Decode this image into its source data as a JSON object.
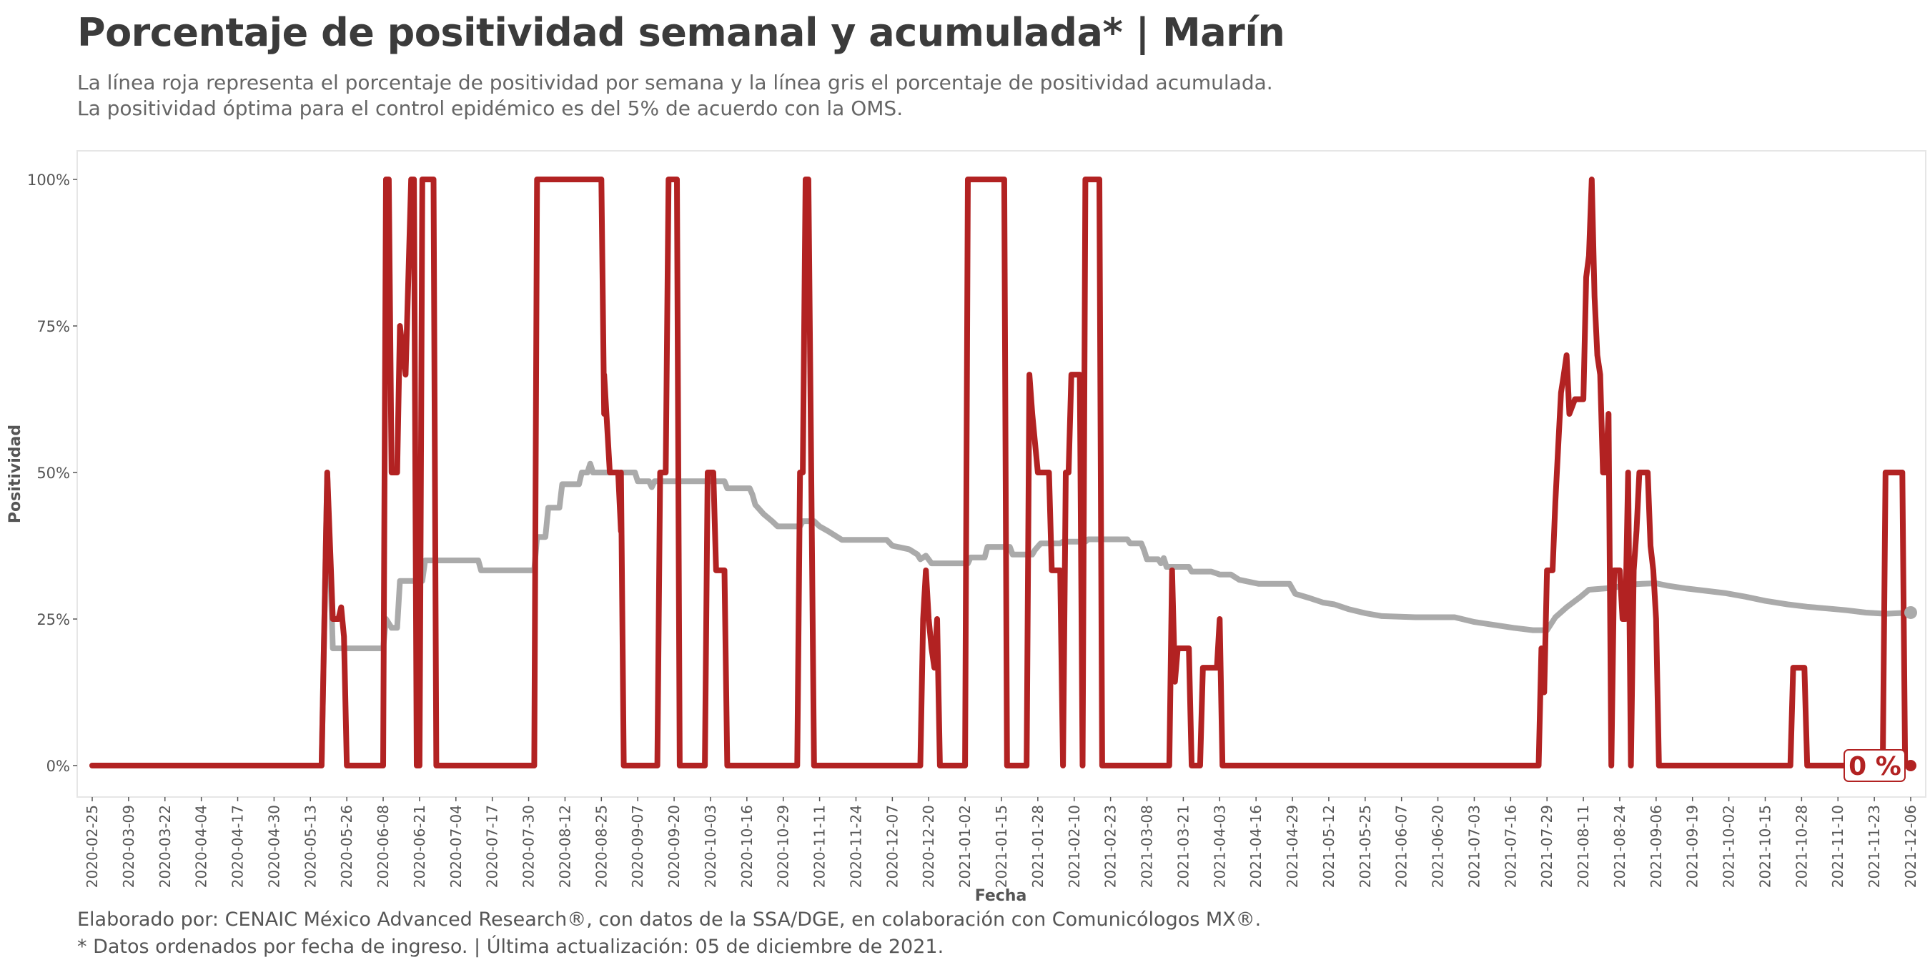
{
  "header": {
    "title": "Porcentaje de positividad semanal y acumulada* | Marín",
    "subtitle_line1": "La línea roja representa el porcentaje de positividad por semana y la línea gris el porcentaje de positividad acumulada.",
    "subtitle_line2": "La positividad óptima para el control epidémico es del 5% de acuerdo con la OMS."
  },
  "footer": {
    "caption_line1": "Elaborado por: CENAIC México Advanced Research®, con datos de la SSA/DGE, en colaboración con Comunicólogos MX®.",
    "caption_line2": "* Datos ordenados por fecha de ingreso. | Última actualización: 05 de diciembre de 2021."
  },
  "colors": {
    "weekly": "#b22222",
    "cumulative": "#aaaaaa",
    "panel_border": "#e6e6e6"
  },
  "chart_data": {
    "type": "line",
    "title": "Porcentaje de positividad semanal y acumulada* | Marín",
    "xlabel": "Fecha",
    "ylabel": "Positividad",
    "ylim": [
      0,
      100
    ],
    "y_ticks": [
      0,
      25,
      50,
      75,
      100
    ],
    "y_tick_labels": [
      "0%",
      "25%",
      "50%",
      "75%",
      "100%"
    ],
    "x_range": [
      "2020-02-25",
      "2021-12-06"
    ],
    "x_ticks": [
      "2020-02-25",
      "2020-03-09",
      "2020-03-22",
      "2020-04-04",
      "2020-04-17",
      "2020-04-30",
      "2020-05-13",
      "2020-05-26",
      "2020-06-08",
      "2020-06-21",
      "2020-07-04",
      "2020-07-17",
      "2020-07-30",
      "2020-08-12",
      "2020-08-25",
      "2020-09-07",
      "2020-09-20",
      "2020-10-03",
      "2020-10-16",
      "2020-10-29",
      "2020-11-11",
      "2020-11-24",
      "2020-12-07",
      "2020-12-20",
      "2021-01-02",
      "2021-01-15",
      "2021-01-28",
      "2021-02-10",
      "2021-02-23",
      "2021-03-08",
      "2021-03-21",
      "2021-04-03",
      "2021-04-16",
      "2021-04-29",
      "2021-05-12",
      "2021-05-25",
      "2021-06-07",
      "2021-06-20",
      "2021-07-03",
      "2021-07-16",
      "2021-07-29",
      "2021-08-11",
      "2021-08-24",
      "2021-09-06",
      "2021-09-19",
      "2021-10-02",
      "2021-10-15",
      "2021-10-28",
      "2021-11-10",
      "2021-11-23",
      "2021-12-06"
    ],
    "end_label": "0 %",
    "grid": false,
    "series": [
      {
        "name": "",
        "points": [
          [
            "2020-02-25",
            0
          ],
          [
            "2020-05-17",
            0
          ],
          [
            "2020-05-19",
            50
          ],
          [
            "2020-05-21",
            25
          ],
          [
            "2020-05-23",
            25
          ],
          [
            "2020-05-24",
            27
          ],
          [
            "2020-05-25",
            22
          ],
          [
            "2020-05-26",
            0
          ],
          [
            "2020-06-08",
            0
          ],
          [
            "2020-06-09",
            100
          ],
          [
            "2020-06-10",
            100
          ],
          [
            "2020-06-11",
            50
          ],
          [
            "2020-06-13",
            50
          ],
          [
            "2020-06-14",
            75
          ],
          [
            "2020-06-16",
            66.7
          ],
          [
            "2020-06-18",
            100
          ],
          [
            "2020-06-19",
            100
          ],
          [
            "2020-06-20",
            0
          ],
          [
            "2020-06-21",
            0
          ],
          [
            "2020-06-22",
            100
          ],
          [
            "2020-06-26",
            100
          ],
          [
            "2020-06-27",
            0
          ],
          [
            "2020-08-01",
            0
          ],
          [
            "2020-08-02",
            100
          ],
          [
            "2020-08-25",
            100
          ],
          [
            "2020-08-26",
            60
          ],
          [
            "2020-08-26",
            66.7
          ],
          [
            "2020-08-28",
            50
          ],
          [
            "2020-08-31",
            50
          ],
          [
            "2020-09-01",
            40
          ],
          [
            "2020-09-01",
            50
          ],
          [
            "2020-09-02",
            0
          ],
          [
            "2020-09-14",
            0
          ],
          [
            "2020-09-15",
            50
          ],
          [
            "2020-09-17",
            50
          ],
          [
            "2020-09-18",
            100
          ],
          [
            "2020-09-21",
            100
          ],
          [
            "2020-09-22",
            0
          ],
          [
            "2020-10-01",
            0
          ],
          [
            "2020-10-02",
            50
          ],
          [
            "2020-10-04",
            50
          ],
          [
            "2020-10-05",
            33.3
          ],
          [
            "2020-10-08",
            33.3
          ],
          [
            "2020-10-09",
            0
          ],
          [
            "2020-11-03",
            0
          ],
          [
            "2020-11-04",
            50
          ],
          [
            "2020-11-05",
            50
          ],
          [
            "2020-11-06",
            100
          ],
          [
            "2020-11-07",
            100
          ],
          [
            "2020-11-08",
            50
          ],
          [
            "2020-11-09",
            0
          ],
          [
            "2020-12-17",
            0
          ],
          [
            "2020-12-18",
            25
          ],
          [
            "2020-12-19",
            33.3
          ],
          [
            "2020-12-20",
            25
          ],
          [
            "2020-12-21",
            20
          ],
          [
            "2020-12-22",
            16.7
          ],
          [
            "2020-12-23",
            25
          ],
          [
            "2020-12-24",
            0
          ],
          [
            "2021-01-02",
            0
          ],
          [
            "2021-01-03",
            100
          ],
          [
            "2021-01-16",
            100
          ],
          [
            "2021-01-17",
            0
          ],
          [
            "2021-01-24",
            0
          ],
          [
            "2021-01-25",
            66.7
          ],
          [
            "2021-01-26",
            60
          ],
          [
            "2021-01-28",
            50
          ],
          [
            "2021-02-01",
            50
          ],
          [
            "2021-02-02",
            33.3
          ],
          [
            "2021-02-05",
            33.3
          ],
          [
            "2021-02-06",
            0
          ],
          [
            "2021-02-07",
            50
          ],
          [
            "2021-02-08",
            50
          ],
          [
            "2021-02-09",
            66.7
          ],
          [
            "2021-02-12",
            66.7
          ],
          [
            "2021-02-13",
            0
          ],
          [
            "2021-02-14",
            100
          ],
          [
            "2021-02-19",
            100
          ],
          [
            "2021-02-20",
            0
          ],
          [
            "2021-03-16",
            0
          ],
          [
            "2021-03-17",
            33.3
          ],
          [
            "2021-03-18",
            14.3
          ],
          [
            "2021-03-19",
            20
          ],
          [
            "2021-03-23",
            20
          ],
          [
            "2021-03-24",
            0
          ],
          [
            "2021-03-27",
            0
          ],
          [
            "2021-03-28",
            16.7
          ],
          [
            "2021-04-02",
            16.7
          ],
          [
            "2021-04-03",
            25
          ],
          [
            "2021-04-04",
            0
          ],
          [
            "2021-07-26",
            0
          ],
          [
            "2021-07-27",
            20
          ],
          [
            "2021-07-28",
            12.5
          ],
          [
            "2021-07-29",
            33.3
          ],
          [
            "2021-07-31",
            33.3
          ],
          [
            "2021-08-01",
            45
          ],
          [
            "2021-08-02",
            54.5
          ],
          [
            "2021-08-03",
            63.6
          ],
          [
            "2021-08-04",
            66.7
          ],
          [
            "2021-08-05",
            70
          ],
          [
            "2021-08-06",
            60
          ],
          [
            "2021-08-08",
            62.5
          ],
          [
            "2021-08-11",
            62.5
          ],
          [
            "2021-08-12",
            83.3
          ],
          [
            "2021-08-13",
            87
          ],
          [
            "2021-08-14",
            100
          ],
          [
            "2021-08-15",
            80
          ],
          [
            "2021-08-16",
            70
          ],
          [
            "2021-08-17",
            66.7
          ],
          [
            "2021-08-18",
            50
          ],
          [
            "2021-08-19",
            50
          ],
          [
            "2021-08-20",
            60
          ],
          [
            "2021-08-21",
            0
          ],
          [
            "2021-08-22",
            33.3
          ],
          [
            "2021-08-24",
            33.3
          ],
          [
            "2021-08-25",
            25
          ],
          [
            "2021-08-26",
            25
          ],
          [
            "2021-08-27",
            50
          ],
          [
            "2021-08-28",
            0
          ],
          [
            "2021-08-29",
            33.3
          ],
          [
            "2021-08-30",
            40
          ],
          [
            "2021-08-31",
            50
          ],
          [
            "2021-09-03",
            50
          ],
          [
            "2021-09-04",
            37.5
          ],
          [
            "2021-09-05",
            33.3
          ],
          [
            "2021-09-06",
            25
          ],
          [
            "2021-09-07",
            0
          ],
          [
            "2021-10-24",
            0
          ],
          [
            "2021-10-25",
            16.7
          ],
          [
            "2021-10-29",
            16.7
          ],
          [
            "2021-10-30",
            0
          ],
          [
            "2021-11-26",
            0
          ],
          [
            "2021-11-27",
            50
          ],
          [
            "2021-12-03",
            50
          ],
          [
            "2021-12-04",
            0
          ],
          [
            "2021-12-06",
            0
          ]
        ]
      },
      {
        "name": "",
        "points": [
          [
            "2020-02-25",
            0
          ],
          [
            "2020-05-17",
            0
          ],
          [
            "2020-05-19",
            50
          ],
          [
            "2020-05-21",
            20
          ],
          [
            "2020-06-08",
            20
          ],
          [
            "2020-06-09",
            25
          ],
          [
            "2020-06-11",
            23.5
          ],
          [
            "2020-06-13",
            23.5
          ],
          [
            "2020-06-14",
            31.5
          ],
          [
            "2020-06-22",
            31.5
          ],
          [
            "2020-06-23",
            35
          ],
          [
            "2020-07-12",
            35
          ],
          [
            "2020-07-13",
            33.3
          ],
          [
            "2020-08-01",
            33.3
          ],
          [
            "2020-08-02",
            39
          ],
          [
            "2020-08-05",
            39
          ],
          [
            "2020-08-06",
            44
          ],
          [
            "2020-08-10",
            44
          ],
          [
            "2020-08-11",
            48
          ],
          [
            "2020-08-17",
            48
          ],
          [
            "2020-08-18",
            50
          ],
          [
            "2020-08-20",
            50
          ],
          [
            "2020-08-21",
            51.5
          ],
          [
            "2020-08-22",
            50
          ],
          [
            "2020-09-06",
            50
          ],
          [
            "2020-09-07",
            48.5
          ],
          [
            "2020-09-11",
            48.5
          ],
          [
            "2020-09-12",
            47.5
          ],
          [
            "2020-09-13",
            48.5
          ],
          [
            "2020-10-08",
            48.5
          ],
          [
            "2020-10-09",
            47.3
          ],
          [
            "2020-10-17",
            47.3
          ],
          [
            "2020-10-18",
            46.2
          ],
          [
            "2020-10-19",
            44.5
          ],
          [
            "2020-10-22",
            42.9
          ],
          [
            "2020-10-25",
            41.7
          ],
          [
            "2020-10-27",
            40.8
          ],
          [
            "2020-11-04",
            40.8
          ],
          [
            "2020-11-05",
            41.7
          ],
          [
            "2020-11-09",
            41.7
          ],
          [
            "2020-11-11",
            40.8
          ],
          [
            "2020-11-14",
            40
          ],
          [
            "2020-11-17",
            39.1
          ],
          [
            "2020-11-19",
            38.5
          ],
          [
            "2020-12-05",
            38.5
          ],
          [
            "2020-12-07",
            37.5
          ],
          [
            "2020-12-13",
            36.9
          ],
          [
            "2020-12-16",
            36
          ],
          [
            "2020-12-17",
            35.2
          ],
          [
            "2020-12-19",
            35.8
          ],
          [
            "2020-12-21",
            34.5
          ],
          [
            "2021-01-03",
            34.5
          ],
          [
            "2021-01-04",
            35.5
          ],
          [
            "2021-01-09",
            35.5
          ],
          [
            "2021-01-10",
            37.3
          ],
          [
            "2021-01-18",
            37.3
          ],
          [
            "2021-01-19",
            36
          ],
          [
            "2021-01-26",
            36
          ],
          [
            "2021-01-27",
            36.8
          ],
          [
            "2021-01-29",
            37.9
          ],
          [
            "2021-02-05",
            37.9
          ],
          [
            "2021-02-06",
            38.2
          ],
          [
            "2021-02-14",
            38.2
          ],
          [
            "2021-02-15",
            38.6
          ],
          [
            "2021-03-01",
            38.6
          ],
          [
            "2021-03-02",
            37.9
          ],
          [
            "2021-03-06",
            37.9
          ],
          [
            "2021-03-07",
            36.7
          ],
          [
            "2021-03-08",
            35.2
          ],
          [
            "2021-03-12",
            35.2
          ],
          [
            "2021-03-13",
            34.5
          ],
          [
            "2021-03-14",
            35.4
          ],
          [
            "2021-03-15",
            33.9
          ],
          [
            "2021-03-23",
            33.9
          ],
          [
            "2021-03-24",
            33.1
          ],
          [
            "2021-03-31",
            33.1
          ],
          [
            "2021-04-03",
            32.6
          ],
          [
            "2021-04-07",
            32.6
          ],
          [
            "2021-04-10",
            31.7
          ],
          [
            "2021-04-17",
            31
          ],
          [
            "2021-04-28",
            31
          ],
          [
            "2021-04-30",
            29.3
          ],
          [
            "2021-05-05",
            28.6
          ],
          [
            "2021-05-10",
            27.8
          ],
          [
            "2021-05-14",
            27.5
          ],
          [
            "2021-05-19",
            26.7
          ],
          [
            "2021-05-25",
            26
          ],
          [
            "2021-05-31",
            25.5
          ],
          [
            "2021-06-12",
            25.3
          ],
          [
            "2021-06-26",
            25.3
          ],
          [
            "2021-07-03",
            24.5
          ],
          [
            "2021-07-10",
            24
          ],
          [
            "2021-07-17",
            23.5
          ],
          [
            "2021-07-24",
            23.1
          ],
          [
            "2021-07-29",
            23.1
          ],
          [
            "2021-08-01",
            25.3
          ],
          [
            "2021-08-05",
            27
          ],
          [
            "2021-08-10",
            28.8
          ],
          [
            "2021-08-13",
            30
          ],
          [
            "2021-08-21",
            30.3
          ],
          [
            "2021-08-28",
            30.9
          ],
          [
            "2021-09-01",
            31
          ],
          [
            "2021-09-06",
            31.1
          ],
          [
            "2021-09-10",
            30.7
          ],
          [
            "2021-09-17",
            30.2
          ],
          [
            "2021-09-24",
            29.8
          ],
          [
            "2021-10-01",
            29.4
          ],
          [
            "2021-10-08",
            28.8
          ],
          [
            "2021-10-15",
            28.1
          ],
          [
            "2021-10-23",
            27.5
          ],
          [
            "2021-10-30",
            27.1
          ],
          [
            "2021-11-06",
            26.8
          ],
          [
            "2021-11-13",
            26.5
          ],
          [
            "2021-11-20",
            26.1
          ],
          [
            "2021-11-27",
            25.9
          ],
          [
            "2021-12-06",
            26.1
          ]
        ]
      }
    ]
  }
}
